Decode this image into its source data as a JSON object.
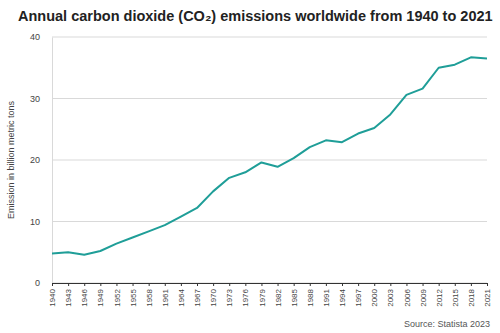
{
  "chart_data": {
    "type": "line",
    "title": "Annual carbon dioxide (CO₂) emissions worldwide from 1940 to 2021",
    "y_label": "Emission in billion metric tons",
    "source": "Source: Statista 2023",
    "x": [
      1940,
      1943,
      1946,
      1949,
      1952,
      1955,
      1958,
      1961,
      1964,
      1967,
      1970,
      1973,
      1976,
      1979,
      1982,
      1985,
      1988,
      1991,
      1994,
      1997,
      2000,
      2003,
      2006,
      2009,
      2012,
      2015,
      2018,
      2021
    ],
    "values": [
      4.8,
      5.0,
      4.6,
      5.2,
      6.4,
      7.4,
      8.4,
      9.4,
      10.8,
      12.2,
      14.9,
      17.1,
      18.0,
      19.6,
      18.9,
      20.3,
      22.1,
      23.2,
      22.9,
      24.3,
      25.2,
      27.4,
      30.6,
      31.6,
      35.0,
      35.5,
      36.7,
      36.5
    ],
    "color": "#1f9e98",
    "xlim": [
      1940,
      2021
    ],
    "xticks": [
      1940,
      1943,
      1946,
      1949,
      1952,
      1955,
      1958,
      1961,
      1964,
      1967,
      1970,
      1973,
      1976,
      1979,
      1982,
      1985,
      1988,
      1991,
      1994,
      1997,
      2000,
      2003,
      2006,
      2009,
      2012,
      2015,
      2018,
      2021
    ],
    "ylim": [
      0,
      40
    ],
    "yticks": [
      0,
      10,
      20,
      30,
      40
    ],
    "grid": true
  }
}
